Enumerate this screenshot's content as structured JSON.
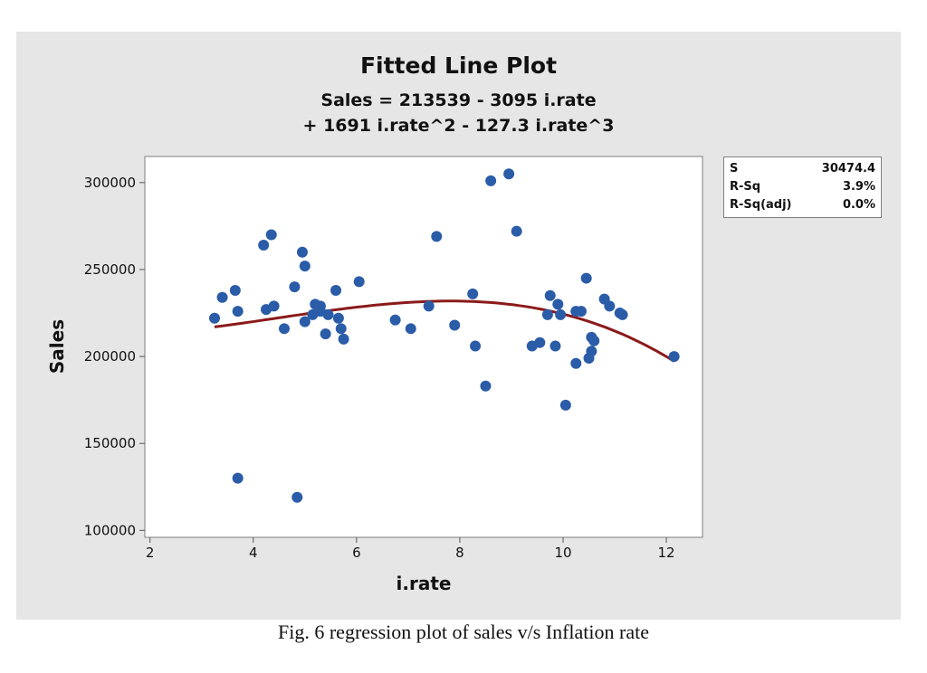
{
  "caption": "Fig. 6 regression plot of sales v/s Inflation rate",
  "stats": [
    {
      "label": "S",
      "value": "30474.4"
    },
    {
      "label": "R-Sq",
      "value": "3.9%"
    },
    {
      "label": "R-Sq(adj)",
      "value": "0.0%"
    }
  ],
  "colors": {
    "panel": "#e6e6e6",
    "points": "#2a5ca8",
    "fit": "#8b1a1a"
  },
  "chart_data": {
    "type": "scatter",
    "title": "Fitted Line Plot",
    "subtitle_line1": "Sales = 213539 - 3095 i.rate",
    "subtitle_line2": "+ 1691 i.rate^2 - 127.3 i.rate^3",
    "xlabel": "i.rate",
    "ylabel": "Sales",
    "xlim": [
      1.9,
      12.7
    ],
    "ylim": [
      96000,
      315000
    ],
    "xticks": [
      2,
      4,
      6,
      8,
      10,
      12
    ],
    "yticks": [
      100000,
      150000,
      200000,
      250000,
      300000
    ],
    "fit": {
      "coefficients": [
        213539,
        -3095,
        1691,
        -127.3
      ],
      "x_range": [
        3.25,
        12.15
      ]
    },
    "points": [
      {
        "x": 3.25,
        "y": 222000
      },
      {
        "x": 3.4,
        "y": 234000
      },
      {
        "x": 3.65,
        "y": 238000
      },
      {
        "x": 3.7,
        "y": 226000
      },
      {
        "x": 3.7,
        "y": 130000
      },
      {
        "x": 4.2,
        "y": 264000
      },
      {
        "x": 4.25,
        "y": 227000
      },
      {
        "x": 4.35,
        "y": 270000
      },
      {
        "x": 4.4,
        "y": 229000
      },
      {
        "x": 4.6,
        "y": 216000
      },
      {
        "x": 4.8,
        "y": 240000
      },
      {
        "x": 4.85,
        "y": 119000
      },
      {
        "x": 4.95,
        "y": 260000
      },
      {
        "x": 5.0,
        "y": 252000
      },
      {
        "x": 5.0,
        "y": 220000
      },
      {
        "x": 5.15,
        "y": 224000
      },
      {
        "x": 5.2,
        "y": 230000
      },
      {
        "x": 5.3,
        "y": 226000
      },
      {
        "x": 5.3,
        "y": 229000
      },
      {
        "x": 5.4,
        "y": 213000
      },
      {
        "x": 5.45,
        "y": 224000
      },
      {
        "x": 5.6,
        "y": 238000
      },
      {
        "x": 5.65,
        "y": 222000
      },
      {
        "x": 5.7,
        "y": 216000
      },
      {
        "x": 5.75,
        "y": 210000
      },
      {
        "x": 6.05,
        "y": 243000
      },
      {
        "x": 6.75,
        "y": 221000
      },
      {
        "x": 7.05,
        "y": 216000
      },
      {
        "x": 7.4,
        "y": 229000
      },
      {
        "x": 7.55,
        "y": 269000
      },
      {
        "x": 7.9,
        "y": 218000
      },
      {
        "x": 8.25,
        "y": 236000
      },
      {
        "x": 8.3,
        "y": 206000
      },
      {
        "x": 8.5,
        "y": 183000
      },
      {
        "x": 8.6,
        "y": 301000
      },
      {
        "x": 8.95,
        "y": 305000
      },
      {
        "x": 9.1,
        "y": 272000
      },
      {
        "x": 9.4,
        "y": 206000
      },
      {
        "x": 9.55,
        "y": 208000
      },
      {
        "x": 9.7,
        "y": 224000
      },
      {
        "x": 9.75,
        "y": 235000
      },
      {
        "x": 9.85,
        "y": 206000
      },
      {
        "x": 9.9,
        "y": 230000
      },
      {
        "x": 9.95,
        "y": 224000
      },
      {
        "x": 10.05,
        "y": 172000
      },
      {
        "x": 10.25,
        "y": 196000
      },
      {
        "x": 10.25,
        "y": 226000
      },
      {
        "x": 10.35,
        "y": 226000
      },
      {
        "x": 10.45,
        "y": 245000
      },
      {
        "x": 10.5,
        "y": 199000
      },
      {
        "x": 10.55,
        "y": 203000
      },
      {
        "x": 10.55,
        "y": 211000
      },
      {
        "x": 10.6,
        "y": 209000
      },
      {
        "x": 10.8,
        "y": 233000
      },
      {
        "x": 10.9,
        "y": 229000
      },
      {
        "x": 11.1,
        "y": 225000
      },
      {
        "x": 11.15,
        "y": 224000
      },
      {
        "x": 12.15,
        "y": 200000
      }
    ],
    "grid": false,
    "legend": "none"
  }
}
